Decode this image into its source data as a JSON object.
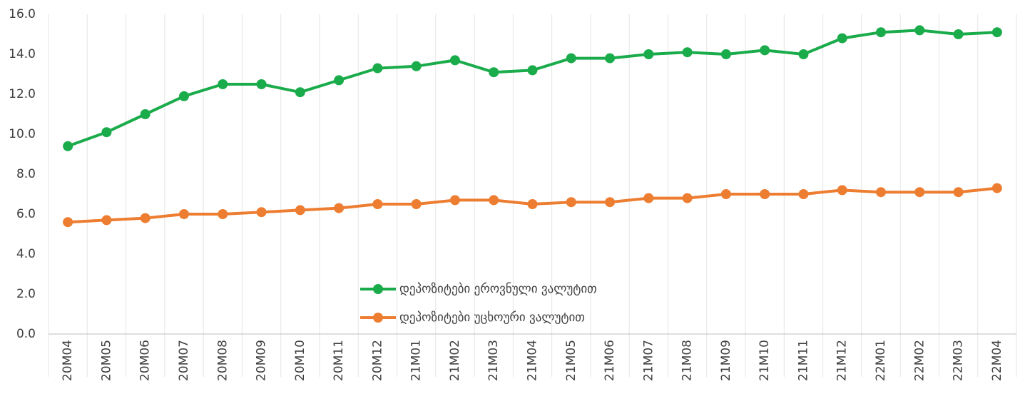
{
  "chart_data": {
    "type": "line",
    "categories": [
      "20M04",
      "20M05",
      "20M06",
      "20M07",
      "20M08",
      "20M09",
      "20M10",
      "20M11",
      "20M12",
      "21M01",
      "21M02",
      "21M03",
      "21M04",
      "21M05",
      "21M06",
      "21M07",
      "21M08",
      "21M09",
      "21M10",
      "21M11",
      "21M12",
      "22M01",
      "22M02",
      "22M03",
      "22M04"
    ],
    "series": [
      {
        "name": "დეპოზიტები ეროვნული ვალუტით",
        "color": "#1aab4b",
        "values": [
          9.4,
          10.1,
          11.0,
          11.9,
          12.5,
          12.5,
          12.1,
          12.7,
          13.3,
          13.4,
          13.7,
          13.1,
          13.2,
          13.8,
          13.8,
          14.0,
          14.1,
          14.0,
          14.2,
          14.0,
          14.8,
          15.1,
          15.2,
          15.0,
          15.1
        ]
      },
      {
        "name": "დეპოზიტები უცხოური ვალუტით",
        "color": "#ed7d31",
        "values": [
          5.6,
          5.7,
          5.8,
          6.0,
          6.0,
          6.1,
          6.2,
          6.3,
          6.5,
          6.5,
          6.7,
          6.7,
          6.5,
          6.6,
          6.6,
          6.8,
          6.8,
          7.0,
          7.0,
          7.0,
          7.2,
          7.1,
          7.1,
          7.1,
          7.3
        ]
      }
    ],
    "ylim": [
      0,
      16
    ],
    "yticks": [
      {
        "value": 0,
        "label": "0.0"
      },
      {
        "value": 2,
        "label": "2.0"
      },
      {
        "value": 4,
        "label": "4.0"
      },
      {
        "value": 6,
        "label": "6.0"
      },
      {
        "value": 8,
        "label": "8.0"
      },
      {
        "value": 10,
        "label": "10.0"
      },
      {
        "value": 12,
        "label": "12.0"
      },
      {
        "value": 14,
        "label": "14.0"
      },
      {
        "value": 16,
        "label": "16.0"
      }
    ],
    "grid": false
  }
}
